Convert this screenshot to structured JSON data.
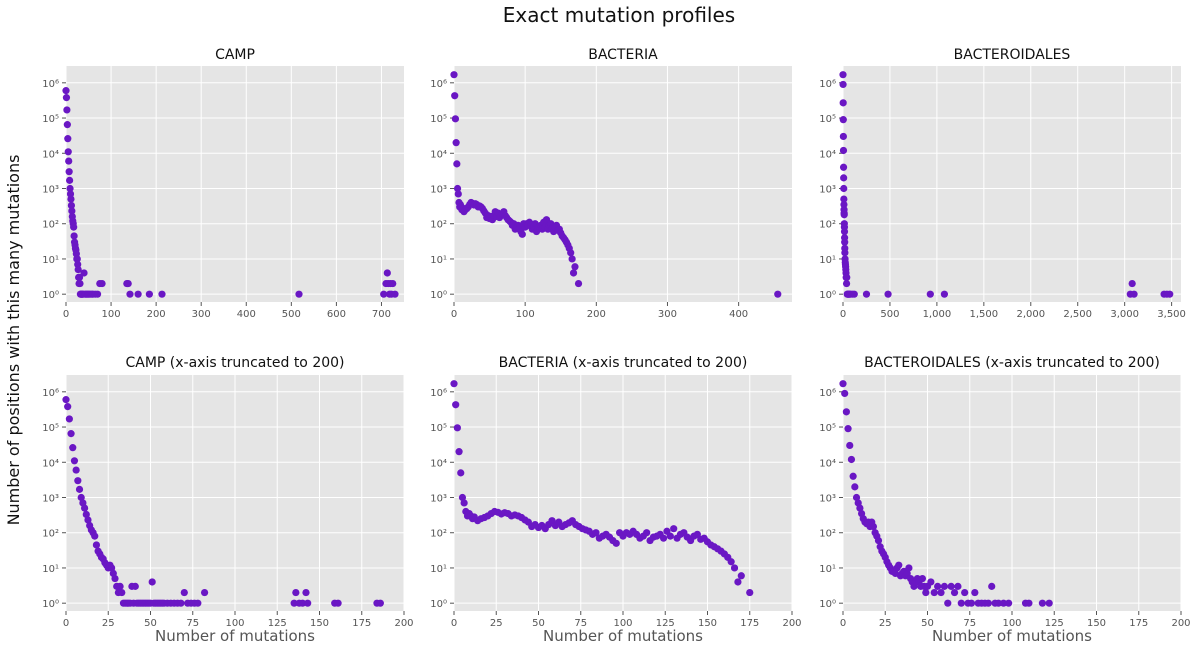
{
  "figure": {
    "title": "Exact mutation profiles",
    "ylabel": "Number of positions with this many mutations",
    "point_color": "#6a17c4",
    "background_color": "#e5e5e5",
    "grid_color": "#ffffff"
  },
  "chart_data": [
    {
      "type": "scatter",
      "title": "CAMP",
      "xlabel": "",
      "yscale": "log",
      "xlim": [
        0,
        750
      ],
      "ylim": [
        0.6,
        3000000
      ],
      "xticks": [
        0,
        100,
        200,
        300,
        400,
        500,
        600,
        700
      ],
      "xtick_labels": [
        "0",
        "100",
        "200",
        "300",
        "400",
        "500",
        "600",
        "700"
      ],
      "yticks": [
        1,
        10,
        100,
        1000,
        10000,
        100000,
        1000000
      ],
      "ytick_labels": [
        "10⁰",
        "10¹",
        "10²",
        "10³",
        "10⁴",
        "10⁵",
        "10⁶"
      ],
      "grid": true,
      "x": [
        0,
        1,
        2,
        3,
        4,
        5,
        6,
        7,
        8,
        9,
        10,
        11,
        12,
        13,
        14,
        15,
        16,
        17,
        18,
        19,
        20,
        21,
        22,
        23,
        24,
        25,
        26,
        27,
        28,
        29,
        30,
        31,
        32,
        33,
        34,
        35,
        36,
        37,
        38,
        40,
        42,
        44,
        46,
        48,
        50,
        52,
        55,
        58,
        60,
        65,
        70,
        75,
        80,
        135,
        138,
        142,
        160,
        185,
        213,
        517,
        705,
        710,
        713,
        715,
        718,
        720,
        722,
        725,
        730
      ],
      "y": [
        600000,
        380000,
        170000,
        65000,
        26000,
        11000,
        6000,
        3000,
        1700,
        1000,
        700,
        500,
        330,
        230,
        160,
        120,
        100,
        80,
        45,
        30,
        25,
        20,
        18,
        14,
        10,
        10,
        7,
        5,
        3,
        2,
        3,
        2,
        1,
        1,
        1,
        1,
        1,
        1,
        1,
        4,
        1,
        1,
        1,
        1,
        1,
        1,
        1,
        1,
        1,
        1,
        1,
        2,
        2,
        2,
        2,
        1,
        1,
        1,
        1,
        1,
        1,
        2,
        4,
        2,
        1,
        2,
        1,
        2,
        1
      ]
    },
    {
      "type": "scatter",
      "title": "BACTERIA",
      "xlabel": "",
      "yscale": "log",
      "xlim": [
        0,
        475
      ],
      "ylim": [
        0.6,
        3000000
      ],
      "xticks": [
        0,
        100,
        200,
        300,
        400
      ],
      "xtick_labels": [
        "0",
        "100",
        "200",
        "300",
        "400"
      ],
      "yticks": [
        1,
        10,
        100,
        1000,
        10000,
        100000,
        1000000
      ],
      "ytick_labels": [
        "10⁰",
        "10¹",
        "10²",
        "10³",
        "10⁴",
        "10⁵",
        "10⁶"
      ],
      "grid": true,
      "x": [
        0,
        1,
        2,
        3,
        4,
        5,
        6,
        7,
        8,
        9,
        10,
        11,
        12,
        14,
        16,
        18,
        20,
        22,
        24,
        26,
        28,
        30,
        32,
        34,
        36,
        38,
        40,
        42,
        44,
        46,
        48,
        50,
        52,
        54,
        56,
        58,
        60,
        62,
        64,
        66,
        68,
        70,
        72,
        74,
        76,
        78,
        80,
        82,
        84,
        86,
        88,
        90,
        92,
        94,
        96,
        98,
        100,
        102,
        104,
        106,
        108,
        110,
        112,
        114,
        116,
        118,
        120,
        122,
        124,
        126,
        128,
        130,
        132,
        134,
        136,
        138,
        140,
        142,
        144,
        146,
        148,
        150,
        152,
        154,
        156,
        158,
        160,
        162,
        164,
        166,
        168,
        170,
        175,
        455
      ],
      "y": [
        1700000,
        430000,
        95000,
        20000,
        5000,
        1000,
        700,
        400,
        300,
        350,
        300,
        250,
        280,
        220,
        250,
        270,
        300,
        350,
        400,
        380,
        340,
        370,
        350,
        300,
        320,
        300,
        270,
        230,
        200,
        150,
        170,
        140,
        160,
        130,
        170,
        220,
        160,
        200,
        150,
        170,
        190,
        220,
        170,
        150,
        130,
        120,
        110,
        90,
        100,
        70,
        80,
        90,
        75,
        60,
        50,
        100,
        80,
        100,
        90,
        110,
        90,
        70,
        80,
        100,
        60,
        75,
        80,
        90,
        70,
        110,
        80,
        130,
        70,
        90,
        100,
        75,
        60,
        80,
        90,
        65,
        70,
        55,
        45,
        40,
        35,
        30,
        25,
        20,
        15,
        10,
        4,
        6,
        2,
        1
      ]
    },
    {
      "type": "scatter",
      "title": "BACTEROIDALES",
      "xlabel": "",
      "yscale": "log",
      "xlim": [
        0,
        3600
      ],
      "ylim": [
        0.6,
        3000000
      ],
      "xticks": [
        0,
        500,
        1000,
        1500,
        2000,
        2500,
        3000,
        3500
      ],
      "xtick_labels": [
        "0",
        "500",
        "1,000",
        "1,500",
        "2,000",
        "2,500",
        "3,000",
        "3,500"
      ],
      "yticks": [
        1,
        10,
        100,
        1000,
        10000,
        100000,
        1000000
      ],
      "ytick_labels": [
        "10⁰",
        "10¹",
        "10²",
        "10³",
        "10⁴",
        "10⁵",
        "10⁶"
      ],
      "grid": true,
      "x": [
        0,
        1,
        2,
        3,
        4,
        5,
        6,
        7,
        8,
        9,
        10,
        11,
        12,
        13,
        14,
        15,
        16,
        17,
        18,
        19,
        20,
        22,
        24,
        26,
        28,
        30,
        32,
        34,
        36,
        38,
        40,
        45,
        50,
        55,
        60,
        65,
        70,
        80,
        100,
        120,
        250,
        480,
        930,
        1080,
        3060,
        3080,
        3100,
        3420,
        3450,
        3480
      ],
      "y": [
        1700000,
        900000,
        270000,
        90000,
        30000,
        12000,
        4000,
        2000,
        1000,
        500,
        350,
        250,
        200,
        180,
        100,
        80,
        60,
        40,
        30,
        20,
        15,
        10,
        8,
        7,
        6,
        5,
        4,
        3,
        3,
        2,
        3,
        1,
        1,
        1,
        1,
        1,
        1,
        1,
        1,
        1,
        1,
        1,
        1,
        1,
        1,
        2,
        1,
        1,
        1,
        1
      ]
    },
    {
      "type": "scatter",
      "title": "CAMP (x-axis truncated to 200)",
      "xlabel": "Number of mutations",
      "yscale": "log",
      "xlim": [
        0,
        200
      ],
      "ylim": [
        0.6,
        3000000
      ],
      "xticks": [
        0,
        25,
        50,
        75,
        100,
        125,
        150,
        175,
        200
      ],
      "xtick_labels": [
        "0",
        "25",
        "50",
        "75",
        "100",
        "125",
        "150",
        "175",
        "200"
      ],
      "yticks": [
        1,
        10,
        100,
        1000,
        10000,
        100000,
        1000000
      ],
      "ytick_labels": [
        "10⁰",
        "10¹",
        "10²",
        "10³",
        "10⁴",
        "10⁵",
        "10⁶"
      ],
      "grid": true,
      "x": [
        0,
        1,
        2,
        3,
        4,
        5,
        6,
        7,
        8,
        9,
        10,
        11,
        12,
        13,
        14,
        15,
        16,
        17,
        18,
        19,
        20,
        21,
        22,
        23,
        24,
        25,
        26,
        27,
        28,
        29,
        30,
        31,
        32,
        33,
        34,
        35,
        36,
        37,
        38,
        39,
        40,
        41,
        42,
        43,
        44,
        45,
        46,
        47,
        48,
        49,
        50,
        51,
        52,
        53,
        54,
        55,
        56,
        57,
        58,
        60,
        62,
        64,
        66,
        68,
        70,
        72,
        74,
        76,
        78,
        82,
        135,
        136,
        138,
        140,
        142,
        143,
        159,
        161,
        184,
        186
      ],
      "y": [
        600000,
        380000,
        170000,
        65000,
        26000,
        11000,
        6000,
        3000,
        1700,
        1000,
        700,
        500,
        330,
        230,
        160,
        120,
        100,
        80,
        45,
        30,
        25,
        20,
        18,
        14,
        12,
        10,
        12,
        10,
        7,
        5,
        3,
        2,
        3,
        2,
        1,
        1,
        1,
        1,
        1,
        3,
        1,
        3,
        1,
        1,
        1,
        1,
        1,
        1,
        1,
        1,
        1,
        4,
        1,
        1,
        1,
        1,
        1,
        1,
        1,
        1,
        1,
        1,
        1,
        1,
        2,
        1,
        1,
        1,
        1,
        2,
        1,
        2,
        1,
        1,
        2,
        1,
        1,
        1,
        1,
        1
      ]
    },
    {
      "type": "scatter",
      "title": "BACTERIA (x-axis truncated to 200)",
      "xlabel": "Number of mutations",
      "yscale": "log",
      "xlim": [
        0,
        200
      ],
      "ylim": [
        0.6,
        3000000
      ],
      "xticks": [
        0,
        25,
        50,
        75,
        100,
        125,
        150,
        175,
        200
      ],
      "xtick_labels": [
        "0",
        "25",
        "50",
        "75",
        "100",
        "125",
        "150",
        "175",
        "200"
      ],
      "yticks": [
        1,
        10,
        100,
        1000,
        10000,
        100000,
        1000000
      ],
      "ytick_labels": [
        "10⁰",
        "10¹",
        "10²",
        "10³",
        "10⁴",
        "10⁵",
        "10⁶"
      ],
      "grid": true,
      "x": [
        0,
        1,
        2,
        3,
        4,
        5,
        6,
        7,
        8,
        9,
        10,
        11,
        12,
        14,
        16,
        18,
        20,
        22,
        24,
        26,
        28,
        30,
        32,
        34,
        36,
        38,
        40,
        42,
        44,
        46,
        48,
        50,
        52,
        54,
        56,
        58,
        60,
        62,
        64,
        66,
        68,
        70,
        72,
        74,
        76,
        78,
        80,
        82,
        84,
        86,
        88,
        90,
        92,
        94,
        96,
        98,
        100,
        102,
        104,
        106,
        108,
        110,
        112,
        114,
        116,
        118,
        120,
        122,
        124,
        126,
        128,
        130,
        132,
        134,
        136,
        138,
        140,
        142,
        144,
        146,
        148,
        150,
        152,
        154,
        156,
        158,
        160,
        162,
        164,
        166,
        168,
        170,
        175
      ],
      "y": [
        1700000,
        430000,
        95000,
        20000,
        5000,
        1000,
        700,
        400,
        300,
        350,
        300,
        250,
        280,
        220,
        250,
        270,
        300,
        350,
        400,
        380,
        340,
        370,
        350,
        300,
        320,
        300,
        270,
        230,
        200,
        150,
        170,
        140,
        160,
        130,
        170,
        220,
        160,
        200,
        150,
        170,
        190,
        220,
        170,
        150,
        130,
        120,
        110,
        90,
        100,
        70,
        80,
        90,
        75,
        60,
        50,
        100,
        80,
        100,
        90,
        110,
        90,
        70,
        80,
        100,
        60,
        75,
        80,
        90,
        70,
        110,
        80,
        130,
        70,
        90,
        100,
        75,
        60,
        80,
        90,
        65,
        70,
        55,
        45,
        40,
        35,
        30,
        25,
        20,
        15,
        10,
        4,
        6,
        2
      ]
    },
    {
      "type": "scatter",
      "title": "BACTEROIDALES (x-axis truncated to 200)",
      "xlabel": "Number of mutations",
      "yscale": "log",
      "xlim": [
        0,
        200
      ],
      "ylim": [
        0.6,
        3000000
      ],
      "xticks": [
        0,
        25,
        50,
        75,
        100,
        125,
        150,
        175,
        200
      ],
      "xtick_labels": [
        "0",
        "25",
        "50",
        "75",
        "100",
        "125",
        "150",
        "175",
        "200"
      ],
      "yticks": [
        1,
        10,
        100,
        1000,
        10000,
        100000,
        1000000
      ],
      "ytick_labels": [
        "10⁰",
        "10¹",
        "10²",
        "10³",
        "10⁴",
        "10⁵",
        "10⁶"
      ],
      "grid": true,
      "x": [
        0,
        1,
        2,
        3,
        4,
        5,
        6,
        7,
        8,
        9,
        10,
        11,
        12,
        13,
        14,
        15,
        16,
        17,
        18,
        19,
        20,
        21,
        22,
        23,
        24,
        25,
        26,
        27,
        28,
        29,
        30,
        31,
        32,
        33,
        34,
        35,
        36,
        37,
        38,
        39,
        40,
        41,
        42,
        43,
        44,
        45,
        46,
        47,
        48,
        49,
        50,
        52,
        54,
        56,
        58,
        60,
        62,
        64,
        66,
        68,
        70,
        72,
        74,
        76,
        78,
        80,
        82,
        84,
        86,
        88,
        90,
        92,
        95,
        98,
        108,
        110,
        118,
        122
      ],
      "y": [
        1700000,
        900000,
        270000,
        90000,
        30000,
        12000,
        4000,
        2000,
        1000,
        700,
        500,
        350,
        250,
        200,
        180,
        200,
        150,
        200,
        150,
        100,
        80,
        60,
        40,
        30,
        25,
        20,
        15,
        12,
        10,
        8,
        8,
        7,
        10,
        12,
        6,
        7,
        8,
        6,
        7,
        10,
        5,
        4,
        3,
        4,
        5,
        4,
        3,
        5,
        3,
        2,
        3,
        4,
        2,
        3,
        2,
        3,
        1,
        3,
        2,
        3,
        1,
        2,
        1,
        1,
        2,
        1,
        1,
        1,
        1,
        3,
        1,
        1,
        1,
        1,
        1,
        1,
        1,
        1
      ]
    }
  ]
}
